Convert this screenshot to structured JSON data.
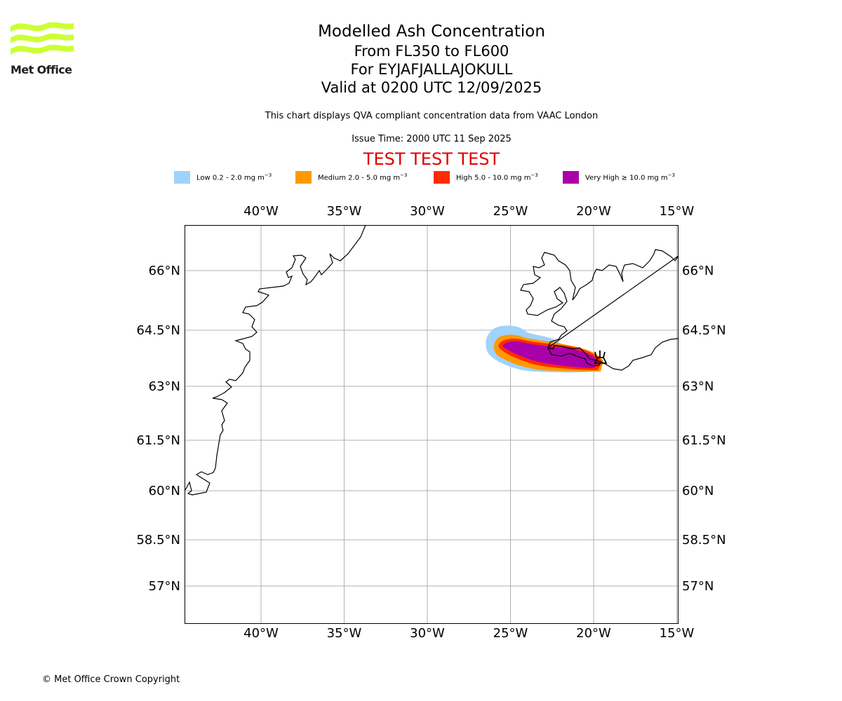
{
  "logo": {
    "text": "Met Office",
    "color": "#ccff33"
  },
  "header": {
    "title": "Modelled Ash Concentration",
    "levels": "From FL350 to FL600",
    "volcano": "For EYJAFJALLAJOKULL",
    "valid": "Valid at 0200 UTC 12/09/2025",
    "note": "This chart displays QVA compliant concentration data from VAAC London",
    "issue": "Issue Time: 2000 UTC 11 Sep 2025",
    "test_banner": "TEST TEST TEST"
  },
  "legend": [
    {
      "label": "Low 0.2 - 2.0 mg m",
      "unit_exp": "−3",
      "color": "#a0d2fa"
    },
    {
      "label": "Medium 2.0 - 5.0 mg m",
      "unit_exp": "−3",
      "color": "#ff9900"
    },
    {
      "label": "High 5.0 - 10.0 mg m",
      "unit_exp": "−3",
      "color": "#ff2a00"
    },
    {
      "label": "Very High  ≥  10.0 mg m",
      "unit_exp": "−3",
      "color": "#aa00aa"
    }
  ],
  "map": {
    "lon_ticks": [
      "40°W",
      "35°W",
      "30°W",
      "25°W",
      "20°W",
      "15°W"
    ],
    "lon_values": [
      -40,
      -35,
      -30,
      -25,
      -20,
      -15
    ],
    "lat_ticks": [
      "66°N",
      "64.5°N",
      "63°N",
      "61.5°N",
      "60°N",
      "58.5°N",
      "57°N"
    ],
    "lat_values": [
      66,
      64.5,
      63,
      61.5,
      60,
      58.5,
      57
    ],
    "gridlines": true,
    "volcano_symbol": "volcano-icon"
  },
  "footer": {
    "copyright": "© Met Office Crown Copyright"
  }
}
